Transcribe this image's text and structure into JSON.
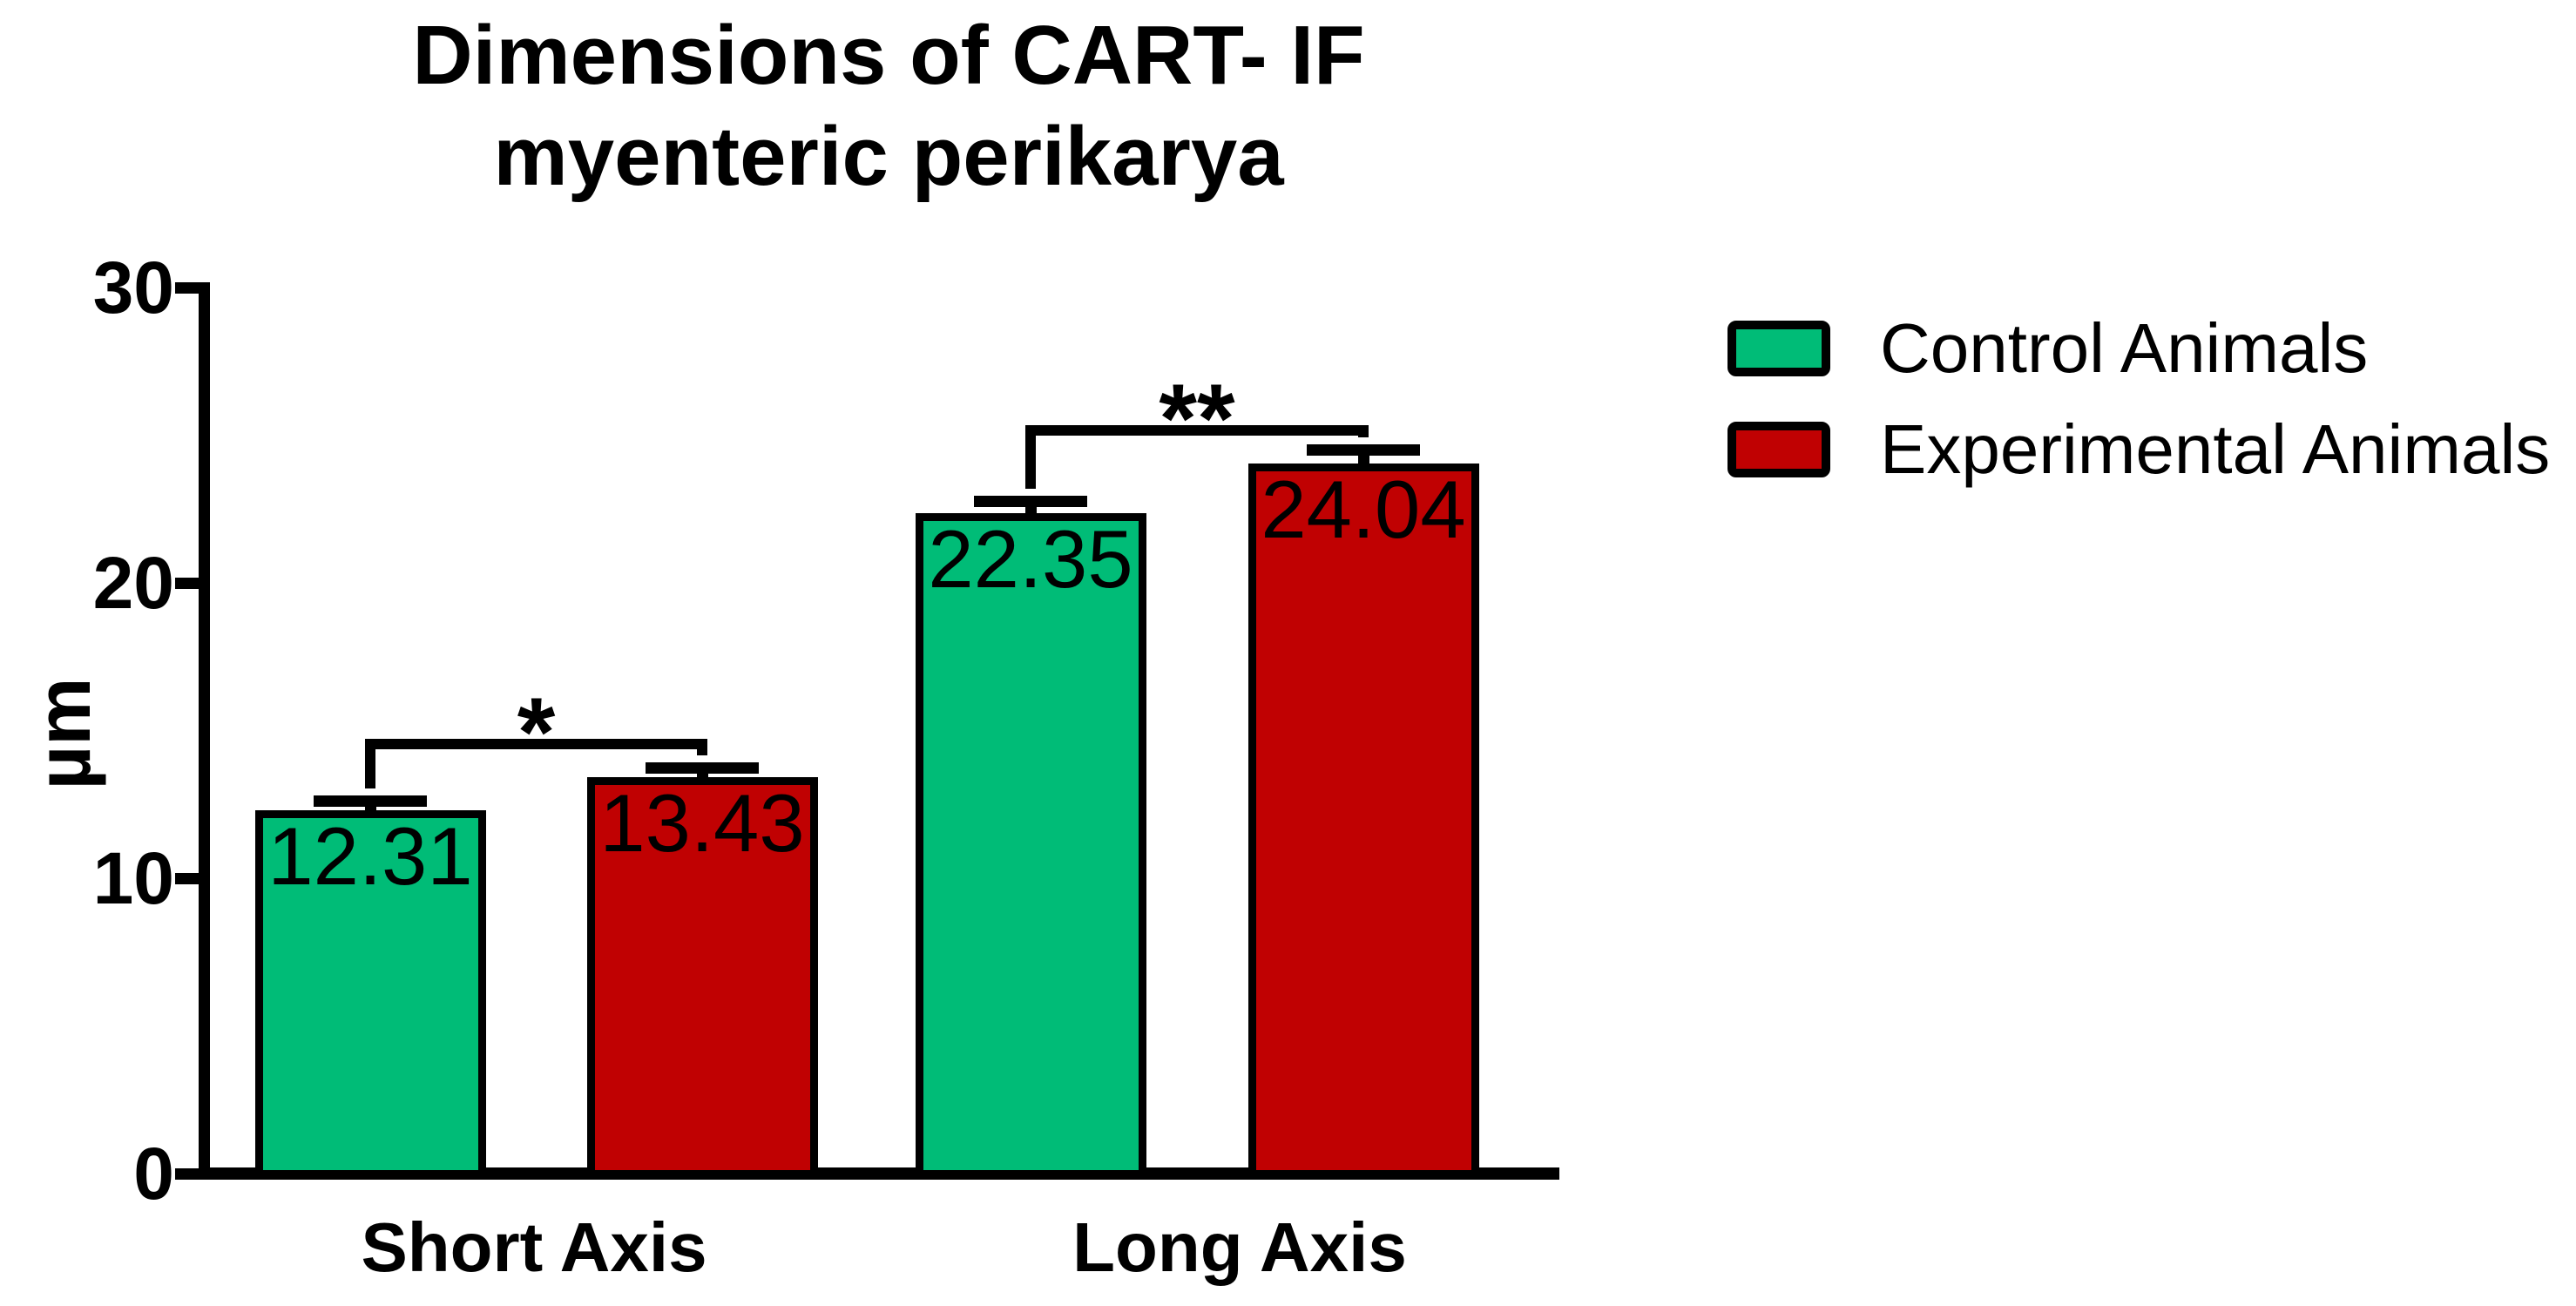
{
  "title": {
    "line1": "Dimensions of CART- IF",
    "line2": "myenteric perikarya"
  },
  "y_axis": {
    "label": "µm",
    "tick_values": [
      0,
      10,
      20,
      30
    ]
  },
  "x_axis": {
    "categories": [
      "Short Axis",
      "Long Axis"
    ]
  },
  "legend": {
    "items": [
      {
        "label": "Control Animals",
        "color": "#00BC77"
      },
      {
        "label": "Experimental Animals",
        "color": "#C00102"
      }
    ]
  },
  "chart_data": {
    "type": "bar",
    "title": "Dimensions of CART- IF myenteric perikarya",
    "categories": [
      "Short Axis",
      "Long Axis"
    ],
    "series": [
      {
        "name": "Control Animals",
        "color": "#00BC77",
        "values": [
          12.31,
          22.35
        ],
        "sem": [
          0.3,
          0.4
        ]
      },
      {
        "name": "Experimental Animals",
        "color": "#C00102",
        "values": [
          13.43,
          24.04
        ],
        "sem": [
          0.3,
          0.45
        ]
      }
    ],
    "value_labels": [
      [
        "12.31",
        "22.35"
      ],
      [
        "13.43",
        "24.04"
      ]
    ],
    "annotations": [
      {
        "category": "Short Axis",
        "label": "*"
      },
      {
        "category": "Long Axis",
        "label": "**"
      }
    ],
    "xlabel": "",
    "ylabel": "µm",
    "ylim": [
      0,
      30
    ],
    "yticks": [
      0,
      10,
      20,
      30
    ],
    "grid": false,
    "legend_position": "right",
    "bar_outline_color": "#000000",
    "error_bar_color": "#000000"
  }
}
